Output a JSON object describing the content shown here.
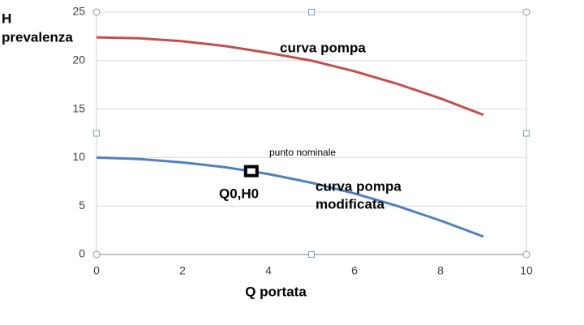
{
  "chart_data": {
    "type": "line",
    "xlabel": "Q portata",
    "ylabel": [
      "H",
      "prevalenza"
    ],
    "x": [
      0,
      1,
      2,
      3,
      4,
      5,
      6,
      7,
      8,
      9
    ],
    "series": [
      {
        "color": "#c0504d",
        "values": [
          22.4,
          22.3,
          22.0,
          21.5,
          20.8,
          20.0,
          18.9,
          17.6,
          16.1,
          14.4
        ]
      },
      {
        "color": "#4f81bd",
        "values": [
          10.0,
          9.85,
          9.5,
          9.0,
          8.3,
          7.4,
          6.3,
          5.0,
          3.5,
          1.85
        ]
      }
    ],
    "point": {
      "x": 3.6,
      "y": 8.6
    },
    "annotations": [
      [
        "curva pompa"
      ],
      [
        "curva pompa",
        "modificata"
      ],
      [
        "punto nominale"
      ],
      [
        "Q0,H0"
      ]
    ],
    "xlim": [
      0,
      10
    ],
    "xticks": [
      0,
      2,
      4,
      6,
      8,
      10
    ],
    "ylim": [
      0,
      25
    ],
    "yticks": [
      0,
      5,
      10,
      15,
      20,
      25
    ],
    "grid": true
  }
}
